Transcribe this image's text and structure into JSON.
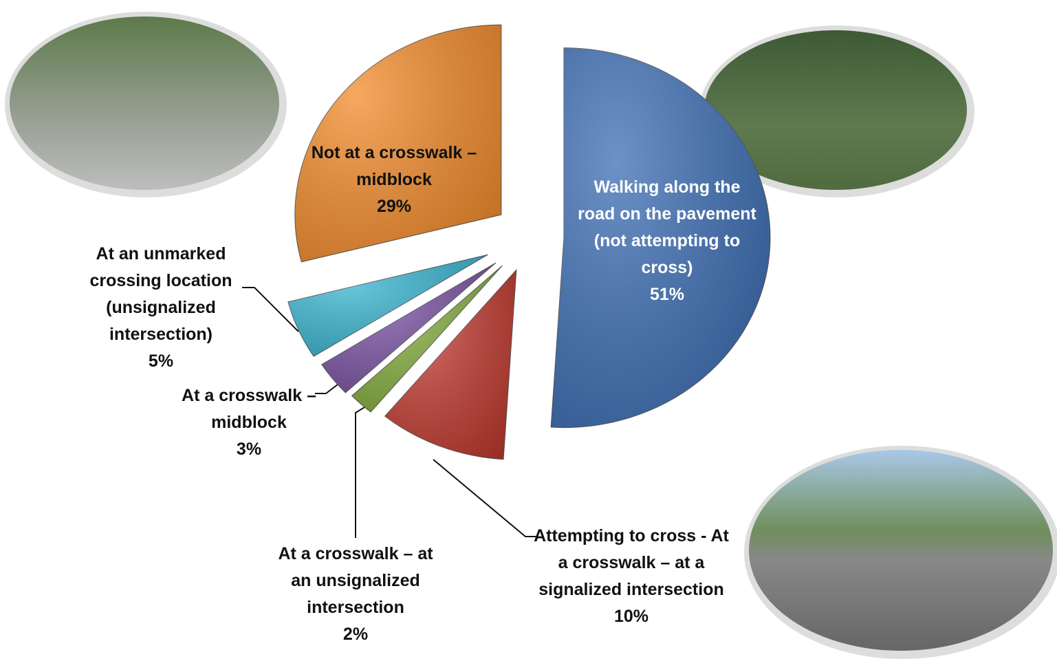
{
  "chart_data": {
    "type": "pie",
    "categories": [
      "Walking along the road on the pavement (not attempting to cross)",
      "Attempting to cross - At a crosswalk – at a signalized intersection",
      "At a crosswalk – at an unsignalized intersection",
      "At a crosswalk – midblock",
      "At an unmarked crossing location (unsignalized intersection)",
      "Not at a crosswalk – midblock"
    ],
    "values": [
      51,
      10,
      2,
      3,
      5,
      29
    ],
    "value_labels": [
      "51%",
      "10%",
      "2%",
      "3%",
      "5%",
      "29%"
    ],
    "colors": [
      "#3b6db3",
      "#c0392f",
      "#82ab3c",
      "#7a52a3",
      "#38b3cf",
      "#f28b2b"
    ]
  }
}
